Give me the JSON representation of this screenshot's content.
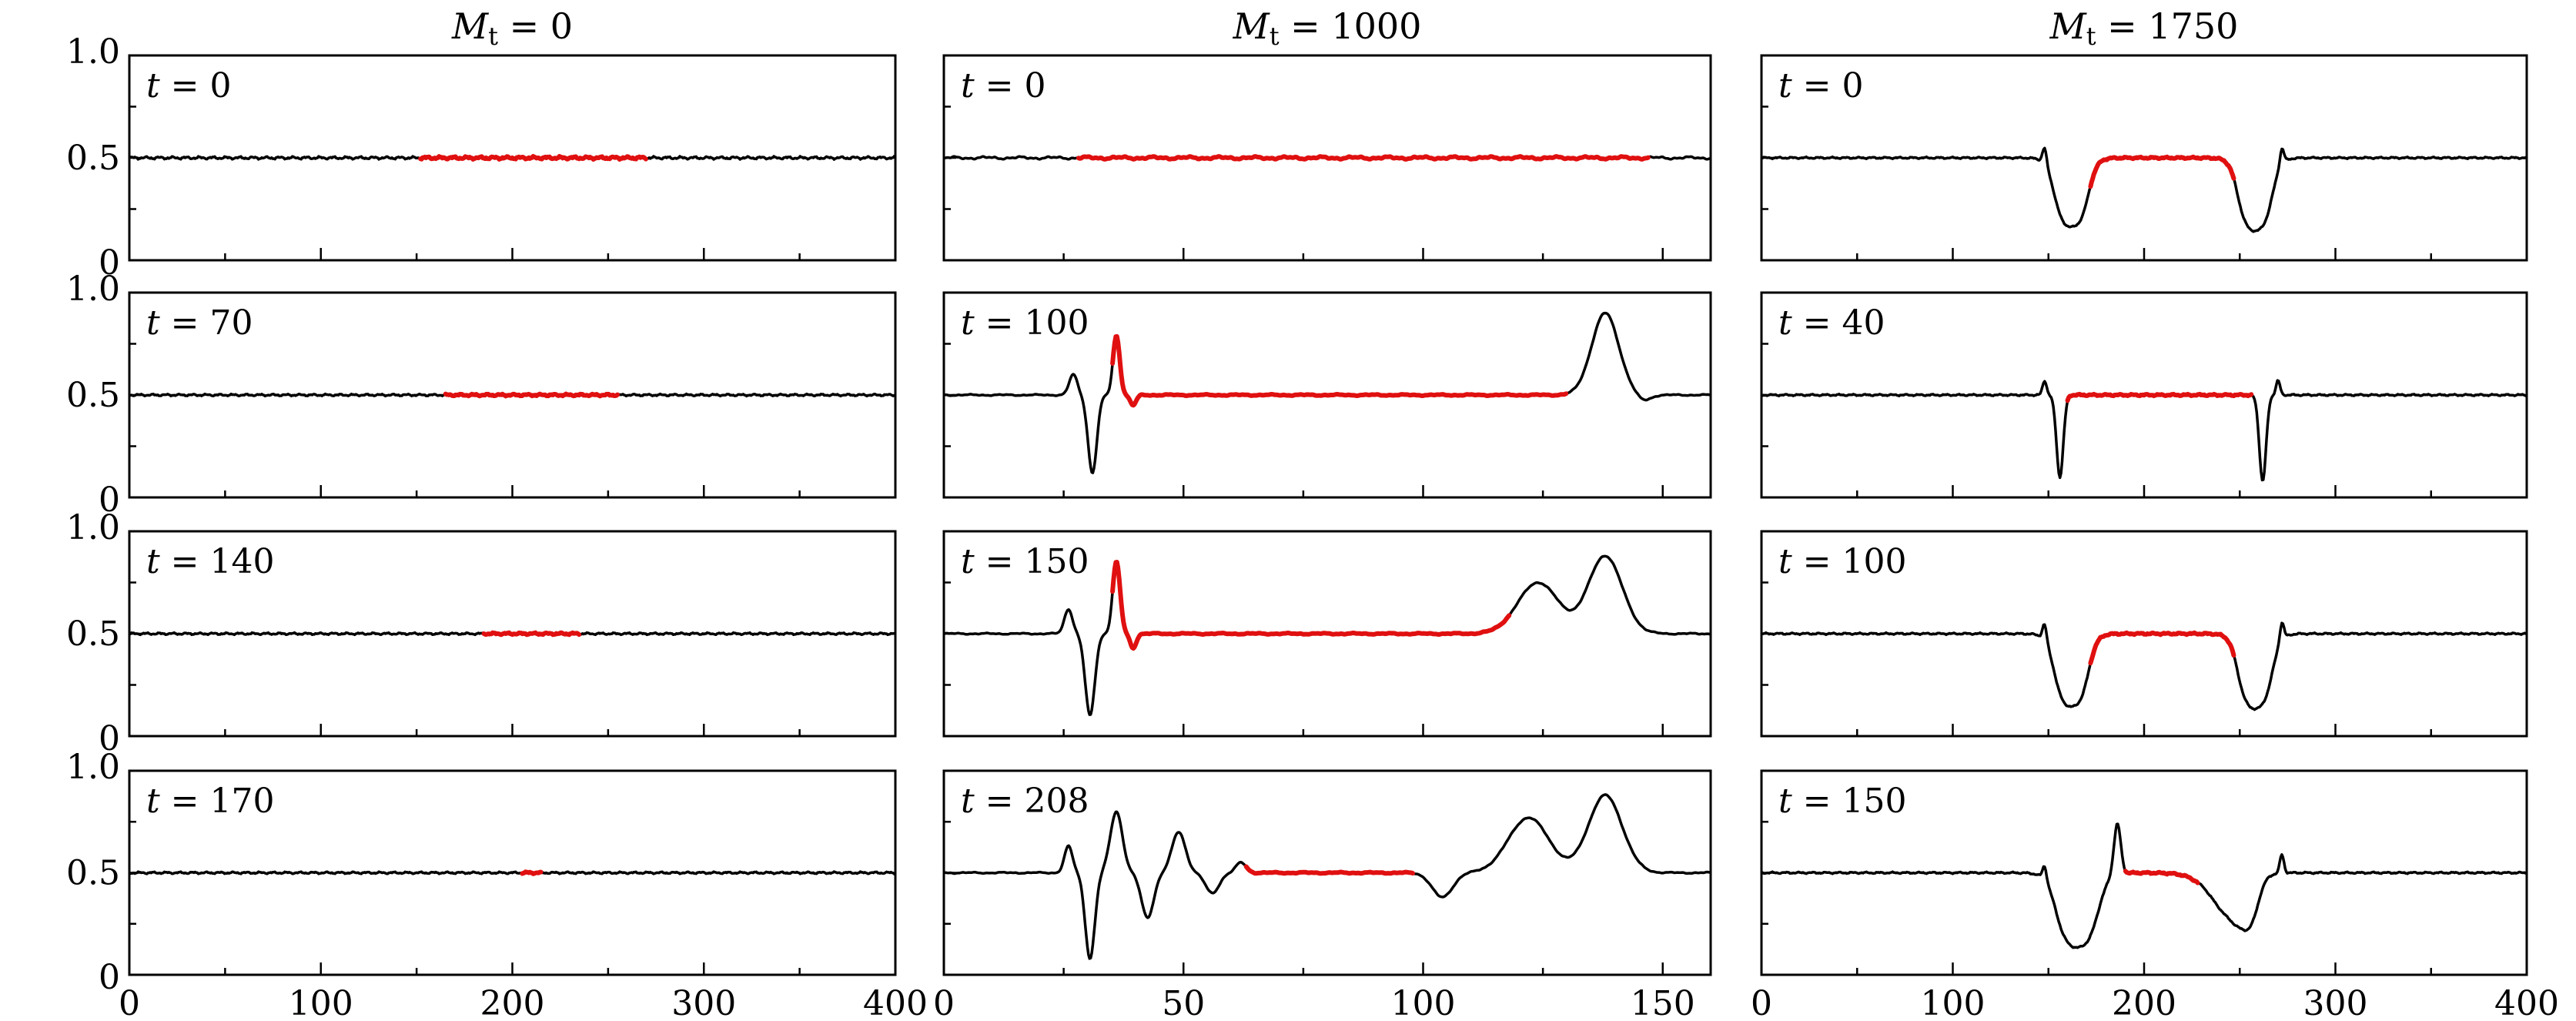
{
  "figure": {
    "columns": [
      {
        "title_var": "M",
        "title_sub": "t",
        "title_rest": " = 0"
      },
      {
        "title_var": "M",
        "title_sub": "t",
        "title_rest": " = 1000"
      },
      {
        "title_var": "M",
        "title_sub": "t",
        "title_rest": " = 1750"
      }
    ],
    "y_tick_labels": [
      "0",
      "0.5",
      "1.0"
    ],
    "x_tick_labels": [
      [
        "0",
        "100",
        "200",
        "300",
        "400"
      ],
      [
        "0",
        "50",
        "100",
        "150"
      ],
      [
        "0",
        "100",
        "200",
        "300",
        "400"
      ]
    ]
  },
  "chart_data": [
    {
      "type": "line",
      "row": 0,
      "col": 0,
      "time_label": "t = 0",
      "xlim": [
        0,
        400
      ],
      "ylim": [
        0,
        1.0
      ],
      "highlight_range": [
        152,
        270
      ],
      "features": [],
      "noise": {
        "ripple_amp": 0.008
      }
    },
    {
      "type": "line",
      "row": 1,
      "col": 0,
      "time_label": "t = 70",
      "xlim": [
        0,
        400
      ],
      "ylim": [
        0,
        1.0
      ],
      "highlight_range": [
        165,
        255
      ],
      "features": [],
      "noise": {
        "ripple_amp": 0.006
      }
    },
    {
      "type": "line",
      "row": 2,
      "col": 0,
      "time_label": "t = 140",
      "xlim": [
        0,
        400
      ],
      "ylim": [
        0,
        1.0
      ],
      "highlight_range": [
        185,
        235
      ],
      "features": [],
      "noise": {
        "ripple_amp": 0.006
      }
    },
    {
      "type": "line",
      "row": 3,
      "col": 0,
      "time_label": "t = 170",
      "xlim": [
        0,
        400
      ],
      "ylim": [
        0,
        1.0
      ],
      "highlight_range": [
        205,
        215
      ],
      "features": [],
      "noise": {
        "ripple_amp": 0.006
      }
    },
    {
      "type": "line",
      "row": 0,
      "col": 1,
      "time_label": "t = 0",
      "xlim": [
        0,
        160
      ],
      "ylim": [
        0,
        1.0
      ],
      "highlight_range": [
        28,
        147
      ],
      "features": [],
      "noise": {
        "ripple_amp": 0.008
      }
    },
    {
      "type": "line",
      "row": 1,
      "col": 1,
      "time_label": "t = 100",
      "xlim": [
        0,
        160
      ],
      "ylim": [
        0,
        1.0
      ],
      "highlight_range": [
        35,
        130
      ],
      "features": [
        {
          "center": 27,
          "amp": 0.1,
          "width": 1.2
        },
        {
          "center": 31,
          "amp": -0.38,
          "width": 1.3
        },
        {
          "center": 36,
          "amp": 0.29,
          "width": 1.0
        },
        {
          "center": 39.5,
          "amp": -0.05,
          "width": 0.9
        },
        {
          "center": 138,
          "amp": 0.4,
          "width": 4.0
        },
        {
          "center": 146,
          "amp": -0.03,
          "width": 2
        }
      ],
      "noise": {
        "ripple_amp": 0.004
      }
    },
    {
      "type": "line",
      "row": 2,
      "col": 1,
      "time_label": "t = 150",
      "xlim": [
        0,
        160
      ],
      "ylim": [
        0,
        1.0
      ],
      "highlight_range": [
        35,
        118
      ],
      "features": [
        {
          "center": 26,
          "amp": 0.12,
          "width": 1.2
        },
        {
          "center": 30.5,
          "amp": -0.4,
          "width": 1.4
        },
        {
          "center": 36,
          "amp": 0.35,
          "width": 1.1
        },
        {
          "center": 39.5,
          "amp": -0.07,
          "width": 0.9
        },
        {
          "center": 124,
          "amp": 0.25,
          "width": 6
        },
        {
          "center": 138,
          "amp": 0.38,
          "width": 5
        }
      ],
      "noise": {
        "ripple_amp": 0.004
      }
    },
    {
      "type": "line",
      "row": 3,
      "col": 1,
      "time_label": "t = 208",
      "xlim": [
        0,
        160
      ],
      "ylim": [
        0,
        1.0
      ],
      "highlight_range": [
        63,
        98
      ],
      "features": [
        {
          "center": 26,
          "amp": 0.13,
          "width": 1.2
        },
        {
          "center": 30.5,
          "amp": -0.42,
          "width": 1.4
        },
        {
          "center": 36,
          "amp": 0.3,
          "width": 1.8
        },
        {
          "center": 42.5,
          "amp": -0.22,
          "width": 1.8
        },
        {
          "center": 49,
          "amp": 0.2,
          "width": 2.0
        },
        {
          "center": 56,
          "amp": -0.1,
          "width": 2.0
        },
        {
          "center": 62,
          "amp": 0.05,
          "width": 1.5
        },
        {
          "center": 104,
          "amp": -0.12,
          "width": 3.0
        },
        {
          "center": 122,
          "amp": 0.27,
          "width": 6
        },
        {
          "center": 138,
          "amp": 0.38,
          "width": 5
        }
      ],
      "noise": {
        "ripple_amp": 0.004
      }
    },
    {
      "type": "line",
      "row": 0,
      "col": 2,
      "time_label": "t = 0",
      "xlim": [
        0,
        400
      ],
      "ylim": [
        0,
        1.0
      ],
      "highlight_range": [
        172,
        247
      ],
      "features": [
        {
          "center": 148,
          "amp": 0.08,
          "width": 1.5
        },
        {
          "center": 162,
          "amp": -0.35,
          "width": 9,
          "shape": "box"
        },
        {
          "center": 258,
          "amp": -0.37,
          "width": 9,
          "shape": "box"
        },
        {
          "center": 272,
          "amp": 0.08,
          "width": 1.5
        }
      ],
      "noise": {
        "ripple_amp": 0.005
      }
    },
    {
      "type": "line",
      "row": 1,
      "col": 2,
      "time_label": "t = 40",
      "xlim": [
        0,
        400
      ],
      "ylim": [
        0,
        1.0
      ],
      "highlight_range": [
        160,
        256
      ],
      "features": [
        {
          "center": 148,
          "amp": 0.07,
          "width": 1.5
        },
        {
          "center": 156,
          "amp": -0.4,
          "width": 2.5
        },
        {
          "center": 262,
          "amp": -0.42,
          "width": 2.5
        },
        {
          "center": 270,
          "amp": 0.07,
          "width": 1.5
        }
      ],
      "noise": {
        "ripple_amp": 0.005
      }
    },
    {
      "type": "line",
      "row": 2,
      "col": 2,
      "time_label": "t = 100",
      "xlim": [
        0,
        400
      ],
      "ylim": [
        0,
        1.0
      ],
      "highlight_range": [
        172,
        247
      ],
      "features": [
        {
          "center": 148,
          "amp": 0.08,
          "width": 1.5
        },
        {
          "center": 162,
          "amp": -0.37,
          "width": 9,
          "shape": "box"
        },
        {
          "center": 258,
          "amp": -0.38,
          "width": 9,
          "shape": "box"
        },
        {
          "center": 272,
          "amp": 0.09,
          "width": 1.5
        }
      ],
      "noise": {
        "ripple_amp": 0.005
      }
    },
    {
      "type": "line",
      "row": 3,
      "col": 2,
      "time_label": "t = 150",
      "xlim": [
        0,
        400
      ],
      "ylim": [
        0,
        1.0
      ],
      "highlight_range": [
        190,
        228
      ],
      "features": [
        {
          "center": 148,
          "amp": 0.07,
          "width": 1.5
        },
        {
          "center": 165,
          "amp": -0.38,
          "width": 11,
          "shape": "box"
        },
        {
          "center": 186,
          "amp": 0.25,
          "width": 2.5
        },
        {
          "center": 245,
          "amp": -0.35,
          "width": 14,
          "shape": "ramp"
        },
        {
          "center": 272,
          "amp": 0.09,
          "width": 1.5
        }
      ],
      "noise": {
        "ripple_amp": 0.005
      }
    }
  ]
}
